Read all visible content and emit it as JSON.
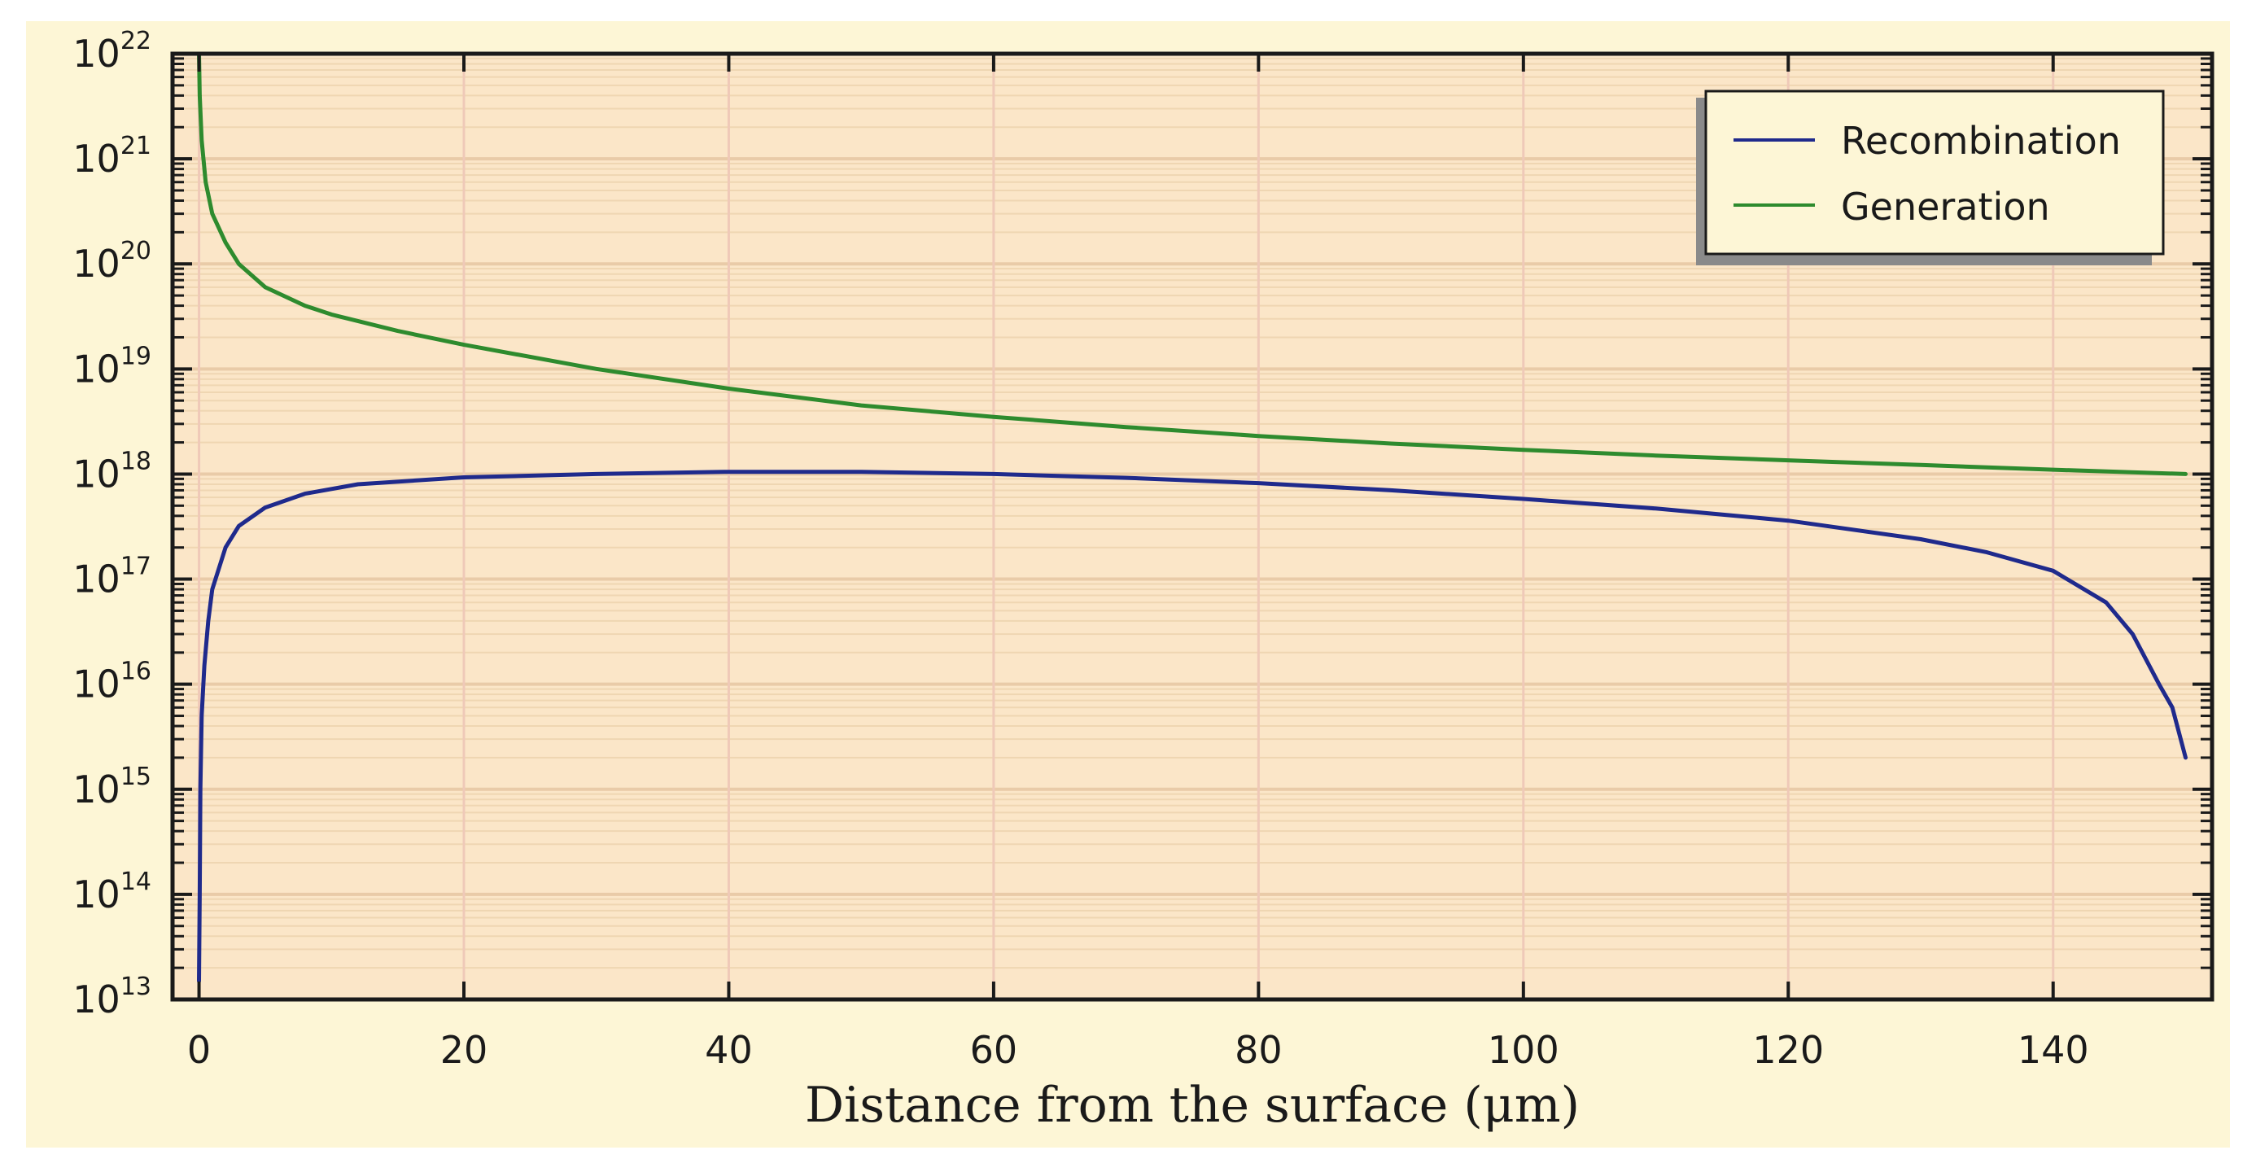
{
  "chart_data": {
    "type": "line",
    "title": "",
    "xlabel": "Distance from the surface (μm)",
    "ylabel": "",
    "xlim": [
      -2,
      152
    ],
    "ylim": [
      10000000000000.0,
      1e+22
    ],
    "yscale": "log",
    "x_ticks": [
      0,
      20,
      40,
      60,
      80,
      100,
      120,
      140
    ],
    "y_ticks": [
      {
        "base": "10",
        "exp": "13",
        "value": 10000000000000.0
      },
      {
        "base": "10",
        "exp": "14",
        "value": 100000000000000.0
      },
      {
        "base": "10",
        "exp": "15",
        "value": 1000000000000000.0
      },
      {
        "base": "10",
        "exp": "16",
        "value": 1e+16
      },
      {
        "base": "10",
        "exp": "17",
        "value": 1e+17
      },
      {
        "base": "10",
        "exp": "18",
        "value": 1e+18
      },
      {
        "base": "10",
        "exp": "19",
        "value": 1e+19
      },
      {
        "base": "10",
        "exp": "20",
        "value": 1e+20
      },
      {
        "base": "10",
        "exp": "21",
        "value": 1e+21
      },
      {
        "base": "10",
        "exp": "22",
        "value": 1e+22
      }
    ],
    "grid": true,
    "legend_position": "top-right",
    "series": [
      {
        "name": "Recombination",
        "color": "#1f2a8c",
        "x": [
          0,
          0.05,
          0.1,
          0.2,
          0.4,
          0.7,
          1,
          2,
          3,
          5,
          8,
          12,
          20,
          30,
          40,
          50,
          60,
          70,
          80,
          90,
          100,
          110,
          120,
          130,
          135,
          140,
          144,
          146,
          148,
          149,
          150
        ],
        "y": [
          15000000000000.0,
          100000000000000.0,
          1000000000000000.0,
          5000000000000000.0,
          1.5e+16,
          4e+16,
          8e+16,
          2e+17,
          3.2e+17,
          4.8e+17,
          6.5e+17,
          8e+17,
          9.3e+17,
          1e+18,
          1.05e+18,
          1.05e+18,
          1e+18,
          9.2e+17,
          8.2e+17,
          7e+17,
          5.8e+17,
          4.7e+17,
          3.6e+17,
          2.4e+17,
          1.8e+17,
          1.2e+17,
          6e+16,
          3e+16,
          1e+16,
          6000000000000000.0,
          2000000000000000.0
        ]
      },
      {
        "name": "Generation",
        "color": "#2e8b2e",
        "x": [
          0,
          0.05,
          0.2,
          0.5,
          1,
          2,
          3,
          5,
          8,
          10,
          15,
          20,
          30,
          40,
          50,
          60,
          70,
          80,
          90,
          100,
          110,
          120,
          130,
          140,
          150
        ],
        "y": [
          1e+22,
          4e+21,
          1.5e+21,
          6e+20,
          3e+20,
          1.6e+20,
          1e+20,
          6e+19,
          4e+19,
          3.3e+19,
          2.3e+19,
          1.7e+19,
          1e+19,
          6.5e+18,
          4.5e+18,
          3.5e+18,
          2.8e+18,
          2.3e+18,
          1.95e+18,
          1.7e+18,
          1.5e+18,
          1.35e+18,
          1.22e+18,
          1.1e+18,
          1e+18
        ]
      }
    ]
  }
}
